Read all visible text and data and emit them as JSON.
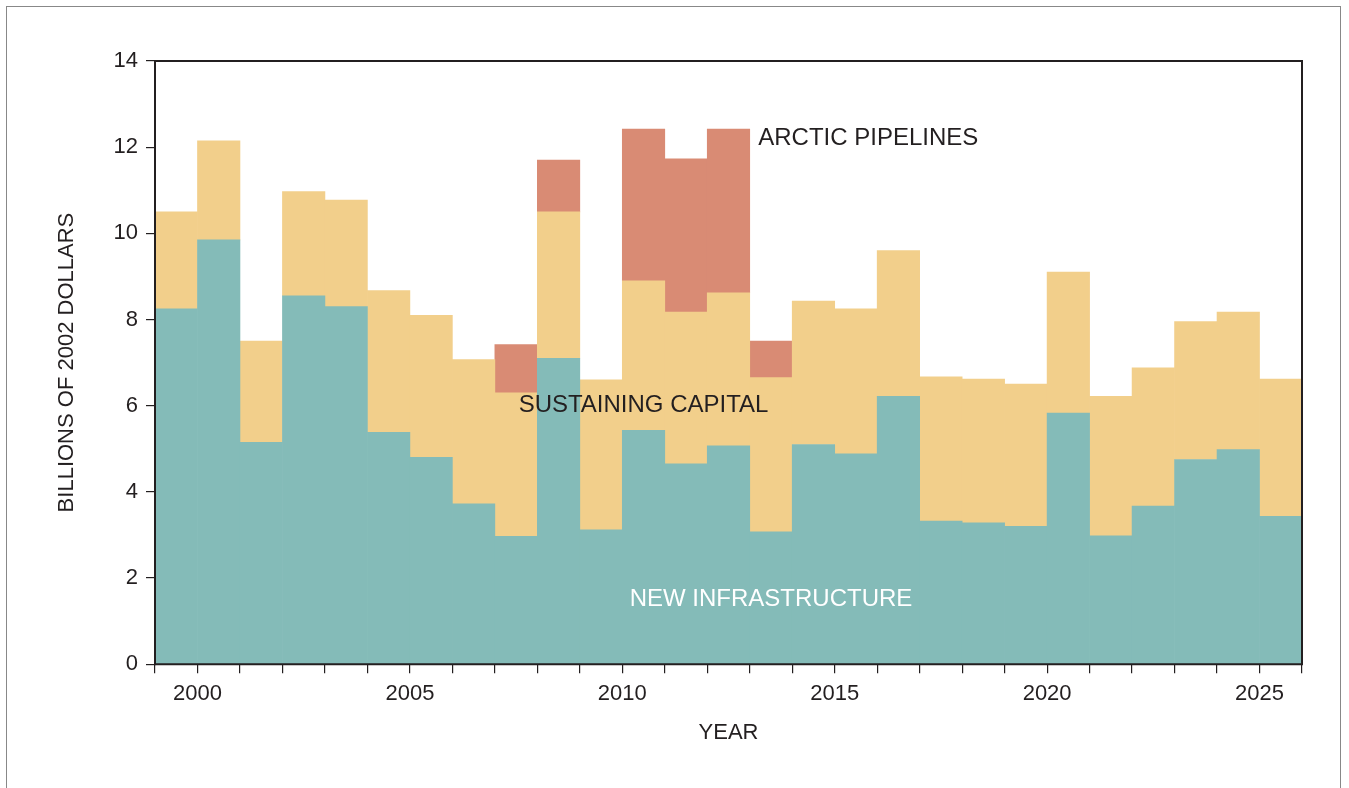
{
  "chart_data": {
    "type": "bar",
    "stacked": true,
    "xlabel": "YEAR",
    "ylabel": "BILLIONS OF 2002 DOLLARS",
    "x": [
      1999.5,
      2000.5,
      2001.5,
      2002.5,
      2003.5,
      2004.5,
      2005.5,
      2006.5,
      2007.5,
      2008.5,
      2009.5,
      2010.5,
      2011.5,
      2012.5,
      2013.5,
      2014.5,
      2015.5,
      2016.5,
      2017.5,
      2018.5,
      2019.5,
      2020.5,
      2021.5,
      2022.5,
      2023.5,
      2024.5,
      2025.5
    ],
    "series": [
      {
        "name": "NEW INFRASTRUCTURE",
        "color": "#84bbb8",
        "values": [
          8.25,
          9.85,
          5.15,
          8.55,
          8.3,
          5.38,
          4.8,
          3.72,
          2.97,
          7.1,
          3.12,
          5.43,
          4.65,
          5.07,
          3.07,
          5.1,
          4.88,
          6.22,
          3.32,
          3.28,
          3.2,
          5.83,
          2.98,
          3.67,
          4.75,
          4.98,
          3.43
        ]
      },
      {
        "name": "SUSTAINING CAPITAL",
        "color": "#f2cf8b",
        "values": [
          2.25,
          2.3,
          2.35,
          2.42,
          2.47,
          3.29,
          3.3,
          3.35,
          3.33,
          3.4,
          3.48,
          3.47,
          3.52,
          3.55,
          3.58,
          3.33,
          3.37,
          3.38,
          3.35,
          3.34,
          3.3,
          3.27,
          3.24,
          3.21,
          3.2,
          3.19,
          3.19
        ]
      },
      {
        "name": "ARCTIC PIPELINES",
        "color": "#d98b74",
        "values": [
          null,
          null,
          null,
          null,
          null,
          null,
          null,
          null,
          1.12,
          1.2,
          null,
          3.52,
          3.56,
          3.8,
          0.85,
          null,
          null,
          null,
          null,
          null,
          null,
          null,
          null,
          null,
          null,
          null,
          null
        ]
      }
    ],
    "xlim": [
      1999,
      2026
    ],
    "xticks": [
      {
        "value": 1999,
        "label": null
      },
      2000,
      {
        "value": 2001,
        "label": null
      },
      {
        "value": 2002,
        "label": null
      },
      {
        "value": 2003,
        "label": null
      },
      {
        "value": 2004,
        "label": null
      },
      2005,
      {
        "value": 2006,
        "label": null
      },
      {
        "value": 2007,
        "label": null
      },
      {
        "value": 2008,
        "label": null
      },
      {
        "value": 2009,
        "label": null
      },
      2010,
      {
        "value": 2011,
        "label": null
      },
      {
        "value": 2012,
        "label": null
      },
      {
        "value": 2013,
        "label": null
      },
      {
        "value": 2014,
        "label": null
      },
      2015,
      {
        "value": 2016,
        "label": null
      },
      {
        "value": 2017,
        "label": null
      },
      {
        "value": 2018,
        "label": null
      },
      {
        "value": 2019,
        "label": null
      },
      2020,
      {
        "value": 2021,
        "label": null
      },
      {
        "value": 2022,
        "label": null
      },
      {
        "value": 2023,
        "label": null
      },
      {
        "value": 2024,
        "label": null
      },
      2025,
      {
        "value": 2026,
        "label": null
      }
    ],
    "ylim": [
      0,
      14
    ],
    "yticks": [
      0,
      2,
      4,
      6,
      8,
      10,
      12,
      14
    ],
    "grid": false,
    "legend": false
  }
}
